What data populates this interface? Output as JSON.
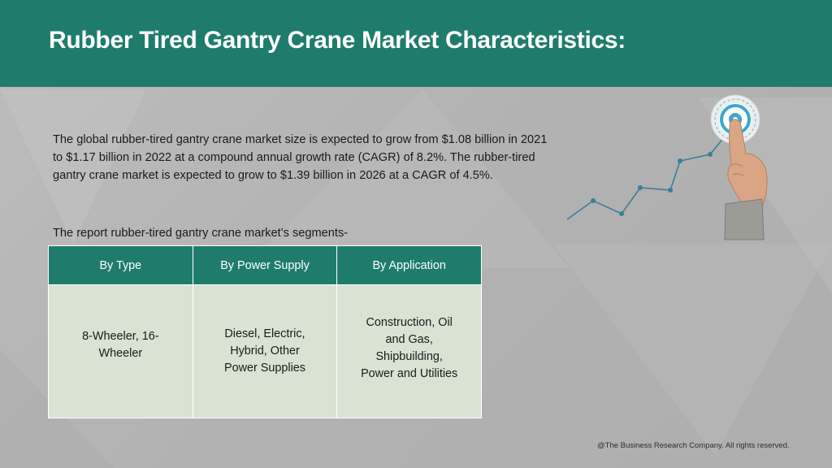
{
  "header": {
    "title": "Rubber Tired Gantry Crane Market Characteristics:"
  },
  "body": {
    "description": "The global rubber-tired gantry crane market size is expected to grow from $1.08 billion in 2021 to $1.17 billion in 2022 at a compound annual growth rate (CAGR) of 8.2%. The rubber-tired gantry crane market is expected to grow to $1.39 billion in 2026 at a CAGR of 4.5%.",
    "segments_intro": "The report rubber-tired gantry crane market’s segments-"
  },
  "segments_table": {
    "headers": [
      "By Type",
      "By Power Supply",
      "By Application"
    ],
    "cells": [
      "8-Wheeler, 16-Wheeler",
      "Diesel, Electric, Hybrid, Other Power Supplies",
      "Construction, Oil and Gas, Shipbuilding, Power and Utilities"
    ]
  },
  "illustration": {
    "icon": "target-growth-icon",
    "accent_color": "#3a7f97"
  },
  "footer": {
    "copyright": "@The Business Research Company. All rights reserved."
  },
  "colors": {
    "header_bg": "#1f7c6c",
    "table_header_bg": "#1f7c6c",
    "table_cell_bg": "#d8e3d3",
    "page_bg": "#b5b5b5"
  }
}
